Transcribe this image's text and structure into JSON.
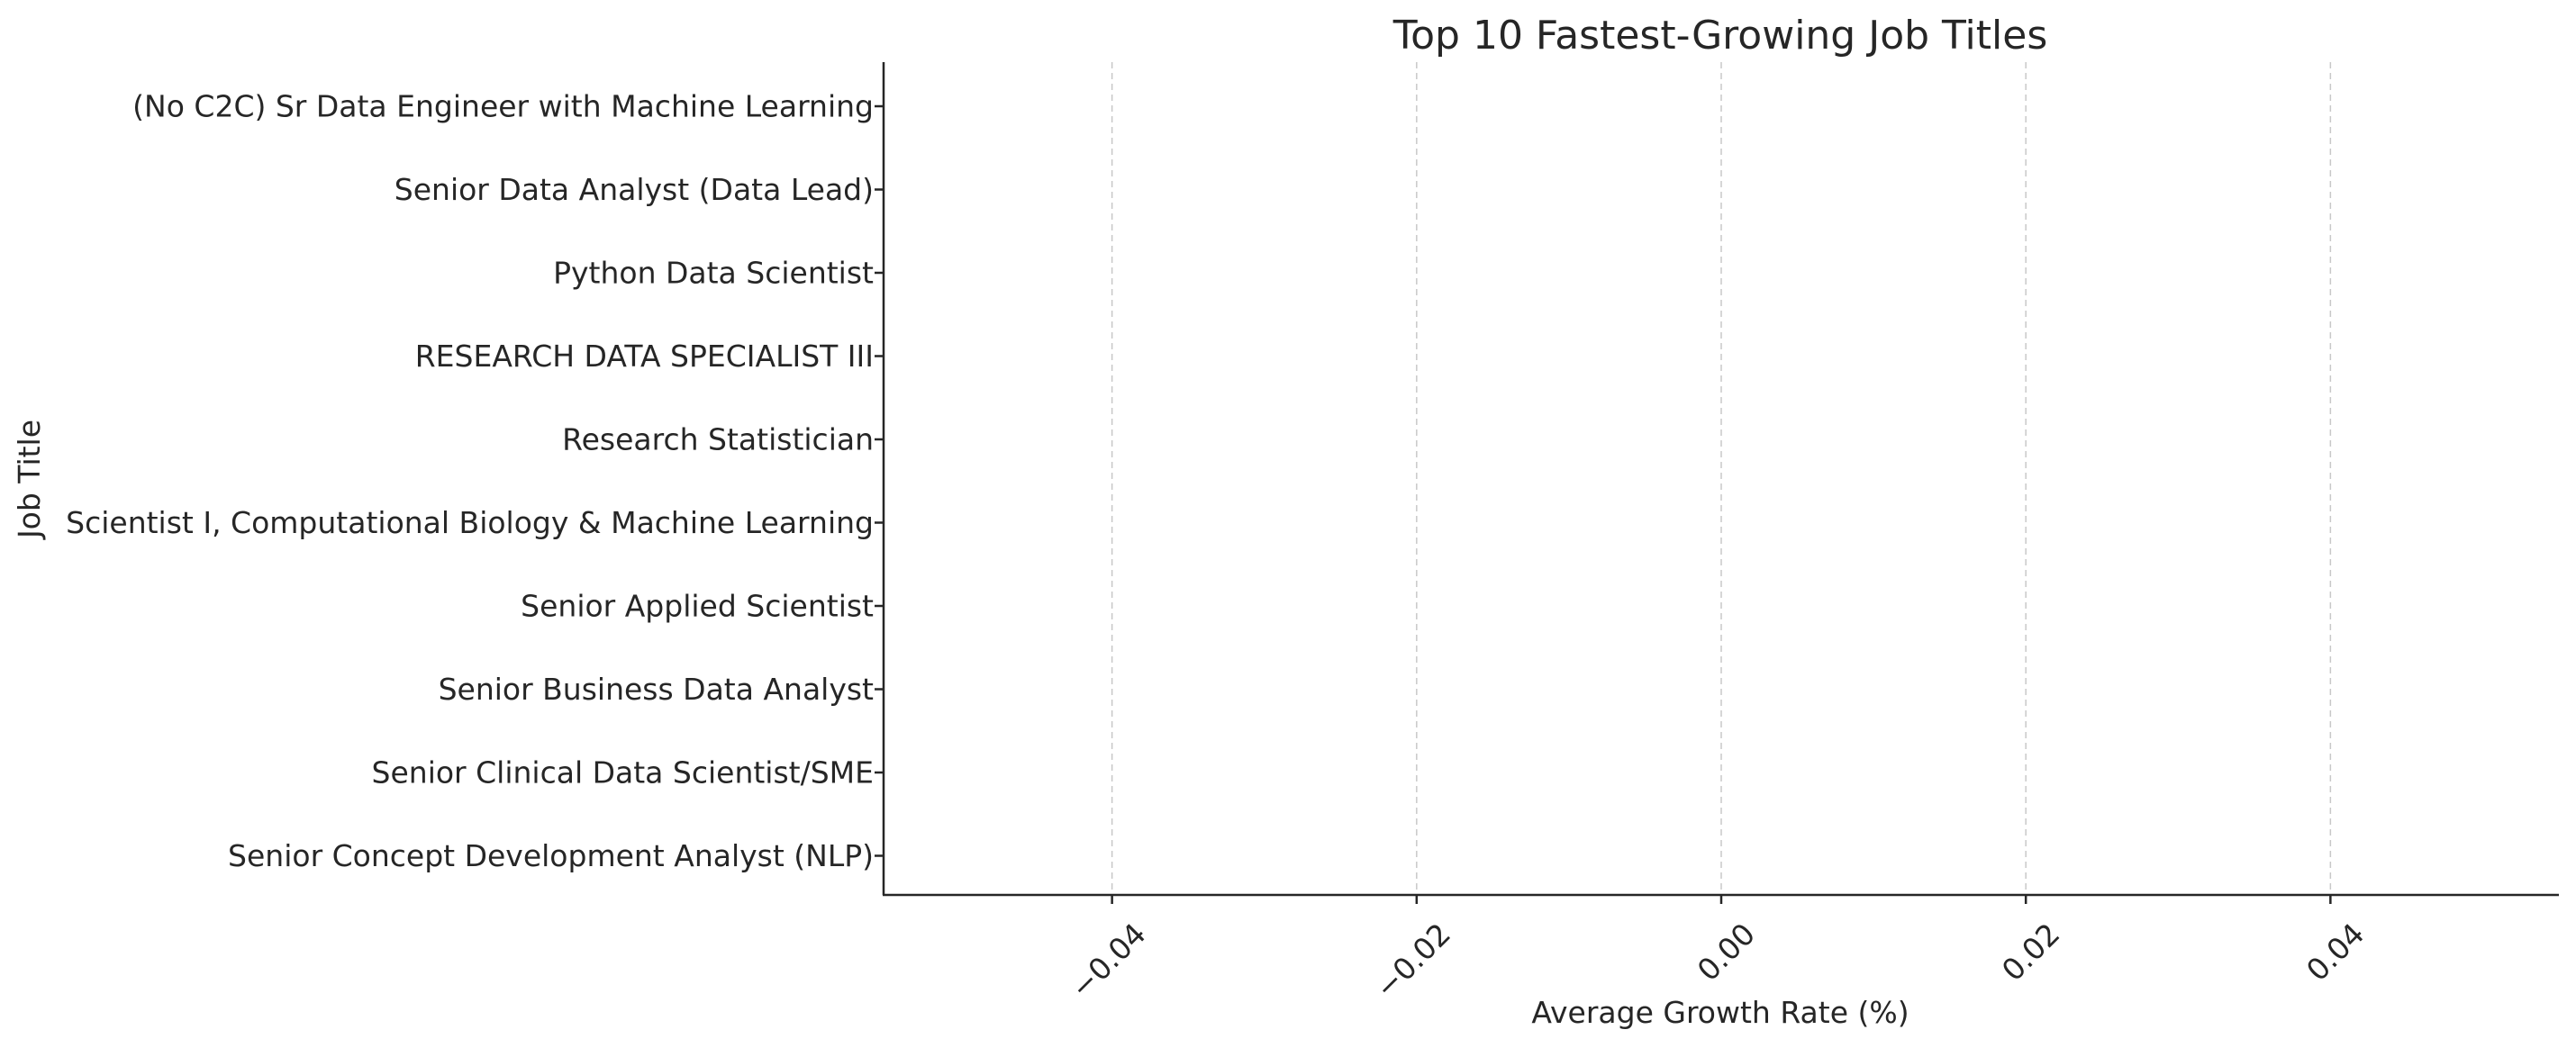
{
  "chart_data": {
    "type": "bar",
    "orientation": "horizontal",
    "title": "Top 10 Fastest-Growing Job Titles",
    "xlabel": "Average Growth Rate (%)",
    "ylabel": "Job Title",
    "categories": [
      "(No C2C) Sr Data Engineer with Machine Learning",
      "Senior Data Analyst (Data Lead)",
      "Python Data Scientist",
      "RESEARCH DATA SPECIALIST III",
      "Research Statistician",
      "Scientist I, Computational Biology & Machine Learning",
      "Senior Applied Scientist",
      "Senior Business Data Analyst",
      "Senior Clinical Data Scientist/SME",
      "Senior Concept Development Analyst (NLP)"
    ],
    "values": [
      0,
      0,
      0,
      0,
      0,
      0,
      0,
      0,
      0,
      0
    ],
    "xlim": [
      -0.055,
      0.055
    ],
    "xticks": [
      -0.04,
      -0.02,
      0.0,
      0.02,
      0.04
    ],
    "xtick_labels": [
      "−0.04",
      "−0.02",
      "0.00",
      "0.02",
      "0.04"
    ],
    "grid": "x-dashed",
    "bar_color": "#4c72b0"
  }
}
